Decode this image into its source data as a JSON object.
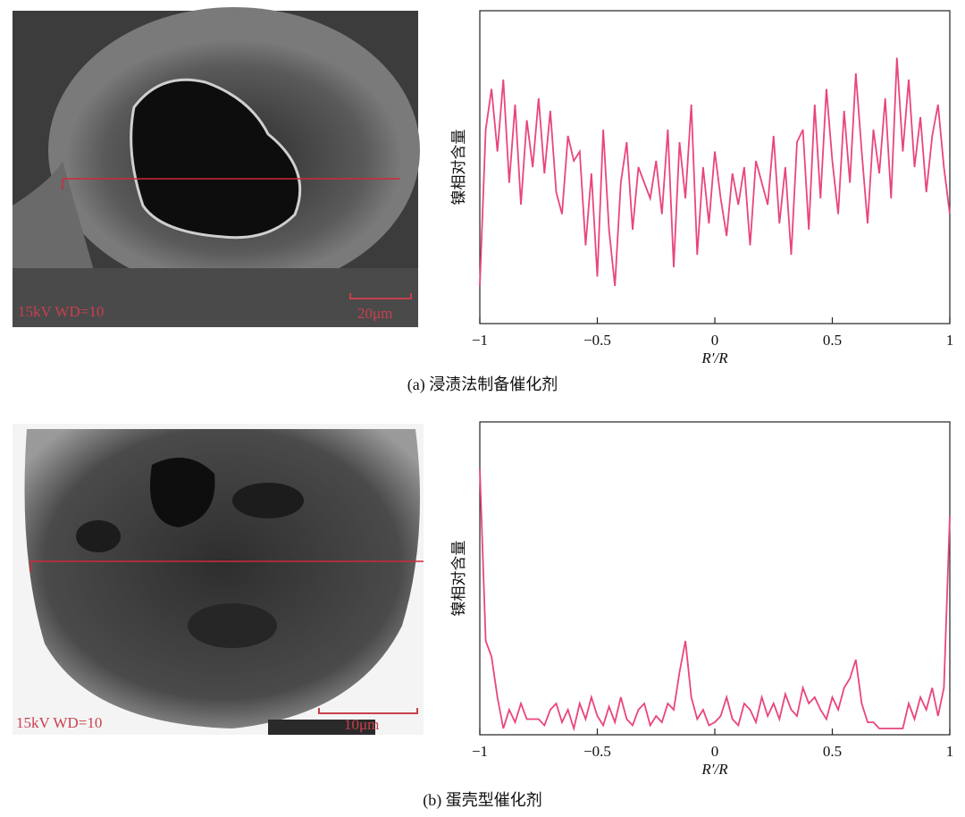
{
  "chart_data": [
    {
      "type": "line",
      "caption": "(a) 浸渍法制备催化剂",
      "image_annotations": [
        "15kV WD=10",
        "20μm"
      ],
      "ylabel": "镍相对含量",
      "xlabel": "R′/R",
      "x": [
        -1,
        -0.975,
        -0.95,
        -0.925,
        -0.9,
        -0.875,
        -0.85,
        -0.825,
        -0.8,
        -0.775,
        -0.75,
        -0.725,
        -0.7,
        -0.675,
        -0.65,
        -0.625,
        -0.6,
        -0.575,
        -0.55,
        -0.525,
        -0.5,
        -0.475,
        -0.45,
        -0.425,
        -0.4,
        -0.375,
        -0.35,
        -0.325,
        -0.3,
        -0.275,
        -0.25,
        -0.225,
        -0.2,
        -0.175,
        -0.15,
        -0.125,
        -0.1,
        -0.075,
        -0.05,
        -0.025,
        0,
        0.025,
        0.05,
        0.075,
        0.1,
        0.125,
        0.15,
        0.175,
        0.2,
        0.225,
        0.25,
        0.275,
        0.3,
        0.325,
        0.35,
        0.375,
        0.4,
        0.425,
        0.45,
        0.475,
        0.5,
        0.525,
        0.55,
        0.575,
        0.6,
        0.625,
        0.65,
        0.675,
        0.7,
        0.725,
        0.75,
        0.775,
        0.8,
        0.825,
        0.85,
        0.875,
        0.9,
        0.925,
        0.95,
        0.975,
        1
      ],
      "series": [
        {
          "color": "#e9467a",
          "values": [
            0.12,
            0.62,
            0.75,
            0.55,
            0.78,
            0.45,
            0.7,
            0.38,
            0.65,
            0.5,
            0.72,
            0.48,
            0.68,
            0.42,
            0.35,
            0.6,
            0.52,
            0.55,
            0.25,
            0.48,
            0.15,
            0.62,
            0.3,
            0.12,
            0.45,
            0.58,
            0.3,
            0.5,
            0.45,
            0.4,
            0.52,
            0.35,
            0.62,
            0.18,
            0.58,
            0.4,
            0.7,
            0.22,
            0.5,
            0.32,
            0.55,
            0.4,
            0.28,
            0.48,
            0.38,
            0.5,
            0.25,
            0.52,
            0.45,
            0.38,
            0.6,
            0.32,
            0.5,
            0.22,
            0.58,
            0.62,
            0.3,
            0.7,
            0.4,
            0.75,
            0.52,
            0.35,
            0.68,
            0.45,
            0.8,
            0.55,
            0.32,
            0.62,
            0.48,
            0.72,
            0.4,
            0.85,
            0.55,
            0.78,
            0.5,
            0.66,
            0.42,
            0.6,
            0.7,
            0.5,
            0.35
          ]
        }
      ],
      "xlim": [
        -1,
        1
      ],
      "ylim": [
        0,
        1
      ],
      "xticks": [
        {
          "value": -1,
          "label": "−1"
        },
        {
          "value": -0.5,
          "label": "−0.5"
        },
        0,
        0.5,
        1
      ]
    },
    {
      "type": "line",
      "caption": "(b) 蛋壳型催化剂",
      "image_annotations": [
        "15kV WD=10",
        "10μm"
      ],
      "ylabel": "镍相对含量",
      "xlabel": "R′/R",
      "x": [
        -1,
        -0.975,
        -0.95,
        -0.925,
        -0.9,
        -0.875,
        -0.85,
        -0.825,
        -0.8,
        -0.775,
        -0.75,
        -0.725,
        -0.7,
        -0.675,
        -0.65,
        -0.625,
        -0.6,
        -0.575,
        -0.55,
        -0.525,
        -0.5,
        -0.475,
        -0.45,
        -0.425,
        -0.4,
        -0.375,
        -0.35,
        -0.325,
        -0.3,
        -0.275,
        -0.25,
        -0.225,
        -0.2,
        -0.175,
        -0.15,
        -0.125,
        -0.1,
        -0.075,
        -0.05,
        -0.025,
        0,
        0.025,
        0.05,
        0.075,
        0.1,
        0.125,
        0.15,
        0.175,
        0.2,
        0.225,
        0.25,
        0.275,
        0.3,
        0.325,
        0.35,
        0.375,
        0.4,
        0.425,
        0.45,
        0.475,
        0.5,
        0.525,
        0.55,
        0.575,
        0.6,
        0.625,
        0.65,
        0.675,
        0.7,
        0.725,
        0.75,
        0.775,
        0.8,
        0.825,
        0.85,
        0.875,
        0.9,
        0.925,
        0.95,
        0.975,
        1
      ],
      "series": [
        {
          "color": "#e9467a",
          "values": [
            0.85,
            0.3,
            0.25,
            0.12,
            0.02,
            0.08,
            0.04,
            0.1,
            0.05,
            0.05,
            0.05,
            0.03,
            0.08,
            0.1,
            0.04,
            0.08,
            0.02,
            0.1,
            0.05,
            0.12,
            0.06,
            0.03,
            0.09,
            0.04,
            0.12,
            0.05,
            0.03,
            0.08,
            0.1,
            0.03,
            0.06,
            0.04,
            0.1,
            0.08,
            0.2,
            0.3,
            0.12,
            0.05,
            0.08,
            0.03,
            0.04,
            0.06,
            0.12,
            0.05,
            0.03,
            0.1,
            0.08,
            0.04,
            0.12,
            0.06,
            0.1,
            0.05,
            0.13,
            0.08,
            0.06,
            0.15,
            0.1,
            0.12,
            0.08,
            0.05,
            0.12,
            0.08,
            0.15,
            0.18,
            0.24,
            0.1,
            0.04,
            0.04,
            0.02,
            0.02,
            0.02,
            0.02,
            0.02,
            0.1,
            0.05,
            0.12,
            0.08,
            0.15,
            0.06,
            0.15,
            0.7
          ]
        }
      ],
      "xlim": [
        -1,
        1
      ],
      "ylim": [
        0,
        1
      ],
      "xticks": [
        {
          "value": -1,
          "label": "−1"
        },
        {
          "value": -0.5,
          "label": "−0.5"
        },
        0,
        0.5,
        1
      ]
    }
  ]
}
